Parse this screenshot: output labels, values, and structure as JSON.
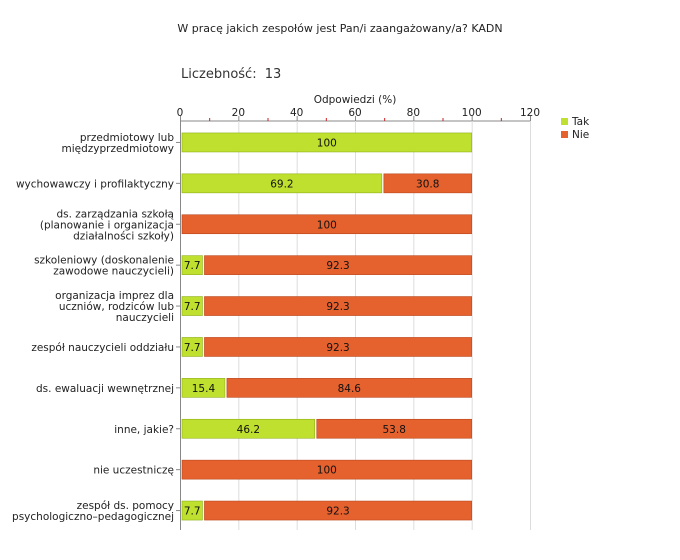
{
  "header": {
    "title": "W pracę jakich zespołów jest Pan/i zaangażowany/a? KADN",
    "count_label": "Liczebność:",
    "count_value": "13"
  },
  "colors": {
    "tak": "#bfe02e",
    "nie": "#e5612e",
    "tak_stroke": "#8fae1a",
    "nie_stroke": "#b8461d",
    "grid": "#dddddd",
    "tick_red": "#cc2222"
  },
  "chart_data": {
    "type": "bar",
    "orientation": "horizontal",
    "stacked": true,
    "xlabel": "Odpowiedzi (%)",
    "xlim": [
      0,
      120
    ],
    "xticks": [
      0,
      20,
      40,
      60,
      80,
      100,
      120
    ],
    "legend_position": "top-right",
    "categories": [
      [
        "przedmiotowy lub",
        "międzyprzedmiotowy"
      ],
      [
        "wychowawczy i profilaktyczny"
      ],
      [
        "ds. zarządzania szkołą",
        "(planowanie i organizacja",
        "działalności szkoły)"
      ],
      [
        "szkoleniowy (doskonalenie",
        "zawodowe nauczycieli)"
      ],
      [
        "organizacja imprez dla",
        "uczniów, rodziców lub",
        "nauczycieli"
      ],
      [
        "zespół nauczycieli oddziału"
      ],
      [
        "ds. ewaluacji wewnętrznej"
      ],
      [
        "inne, jakie?"
      ],
      [
        "nie uczestniczę"
      ],
      [
        "zespół ds. pomocy",
        "psychologiczno–pedagogicznej"
      ]
    ],
    "series": [
      {
        "name": "Tak",
        "values": [
          100,
          69.2,
          0,
          7.7,
          7.7,
          7.7,
          15.4,
          46.2,
          0,
          7.7
        ],
        "labels": [
          "100",
          "69.2",
          "",
          "7.7",
          "7.7",
          "7.7",
          "15.4",
          "46.2",
          "",
          "7.7"
        ]
      },
      {
        "name": "Nie",
        "values": [
          0,
          30.8,
          100,
          92.3,
          92.3,
          92.3,
          84.6,
          53.8,
          100,
          92.3
        ],
        "labels": [
          "",
          "30.8",
          "100",
          "92.3",
          "92.3",
          "92.3",
          "84.6",
          "53.8",
          "100",
          "92.3"
        ]
      }
    ]
  }
}
